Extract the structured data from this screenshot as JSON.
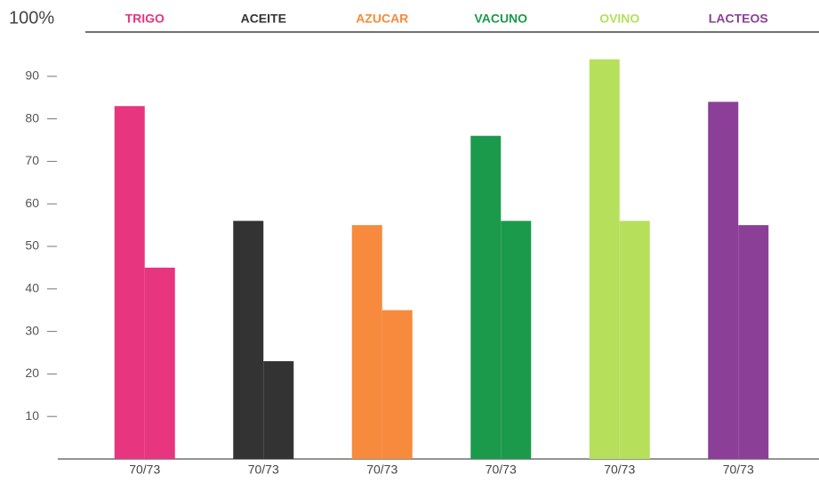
{
  "chart_data": {
    "type": "bar",
    "categories": [
      "TRIGO",
      "ACEITE",
      "AZUCAR",
      "VACUNO",
      "OVINO",
      "LACTEOS"
    ],
    "x_labels": [
      "70/73",
      "70/73",
      "70/73",
      "70/73",
      "70/73",
      "70/73"
    ],
    "colors": [
      "#e8357f",
      "#333333",
      "#f78a3c",
      "#1c9a4c",
      "#b6df5c",
      "#8b3f97"
    ],
    "series": [
      {
        "values": [
          83,
          56,
          55,
          76,
          94,
          84
        ]
      },
      {
        "values": [
          45,
          23,
          35,
          56,
          56,
          55
        ]
      }
    ],
    "ylim": [
      0,
      100
    ],
    "yticks": [
      10,
      20,
      30,
      40,
      50,
      60,
      70,
      80,
      90,
      {
        "value": 100,
        "label": "100%"
      }
    ]
  }
}
